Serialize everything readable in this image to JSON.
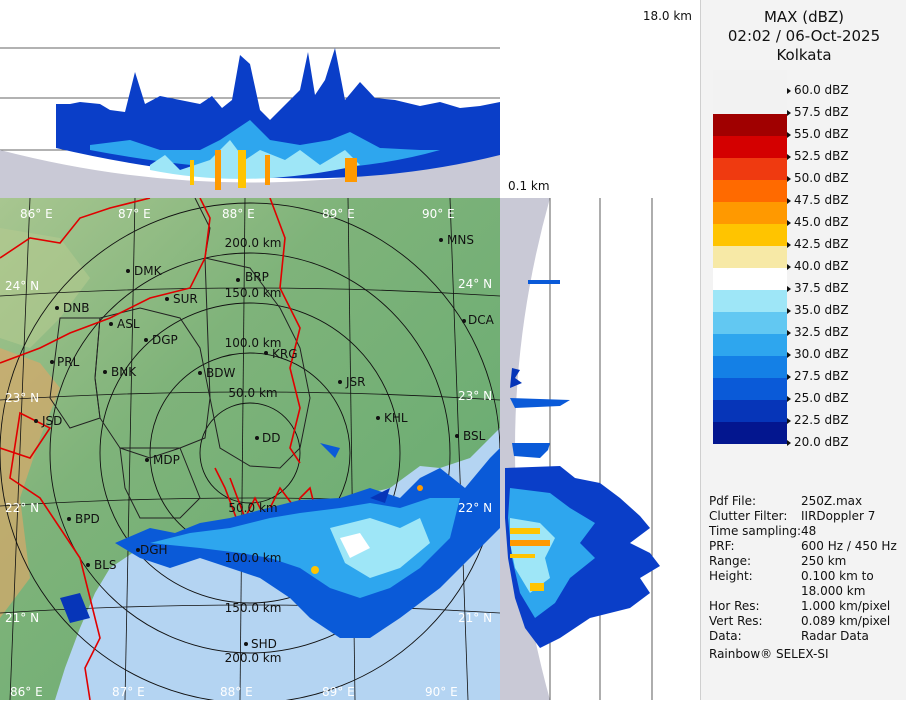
{
  "legend": {
    "product": "MAX (dBZ)",
    "datetime": "02:02 / 06-Oct-2025",
    "station": "Kolkata",
    "levels": [
      {
        "label": "60.0 dBZ",
        "color": "#f2f2f2"
      },
      {
        "label": "57.5 dBZ",
        "color": "#f2f2f2"
      },
      {
        "label": "55.0 dBZ",
        "color": "#a00000"
      },
      {
        "label": "52.5 dBZ",
        "color": "#d40000"
      },
      {
        "label": "50.0 dBZ",
        "color": "#ef3a10"
      },
      {
        "label": "47.5 dBZ",
        "color": "#ff6a00"
      },
      {
        "label": "45.0 dBZ",
        "color": "#ff9900"
      },
      {
        "label": "42.5 dBZ",
        "color": "#ffc400"
      },
      {
        "label": "40.0 dBZ",
        "color": "#f7e9a6"
      },
      {
        "label": "37.5 dBZ",
        "color": "#ffffff"
      },
      {
        "label": "35.0 dBZ",
        "color": "#9ee6f7"
      },
      {
        "label": "32.5 dBZ",
        "color": "#62c8f2"
      },
      {
        "label": "30.0 dBZ",
        "color": "#2ea6ee"
      },
      {
        "label": "27.5 dBZ",
        "color": "#1480e6"
      },
      {
        "label": "25.0 dBZ",
        "color": "#0a5ad8"
      },
      {
        "label": "22.5 dBZ",
        "color": "#0635b8"
      },
      {
        "label": "20.0 dBZ",
        "color": "#03168f"
      }
    ]
  },
  "info": [
    {
      "key": "Pdf File:",
      "value": "250Z.max"
    },
    {
      "key": "Clutter Filter:",
      "value": "IIRDoppler 7"
    },
    {
      "key": "Time sampling:",
      "value": "48"
    },
    {
      "key": "PRF:",
      "value": "600 Hz / 450 Hz"
    },
    {
      "key": "Range:",
      "value": "250 km"
    },
    {
      "key": "Height:",
      "value": "0.100 km to"
    },
    {
      "key": "",
      "value": "18.000 km"
    },
    {
      "key": "Hor Res:",
      "value": "1.000 km/pixel"
    },
    {
      "key": "Vert Res:",
      "value": "0.089 km/pixel"
    },
    {
      "key": "Data:",
      "value": "Radar Data"
    }
  ],
  "credit": "Rainbow® SELEX-SI",
  "section": {
    "top_height": "18.0 km",
    "bottom_height": "0.1 km"
  },
  "map": {
    "lon_labels": [
      "86° E",
      "87° E",
      "88° E",
      "89° E",
      "90° E"
    ],
    "lat_labels": [
      "24° N",
      "23° N",
      "22° N",
      "21° N"
    ],
    "ring_labels": [
      "200.0 km",
      "150.0 km",
      "100.0 km",
      "50.0 km",
      "50.0 km",
      "100.0 km",
      "150.0 km",
      "200.0 km"
    ],
    "stations": [
      "MNS",
      "DMK",
      "BRP",
      "DNB",
      "SUR",
      "ASL",
      "DGP",
      "DCA",
      "PRL",
      "KRG",
      "BNK",
      "BDW",
      "JSR",
      "JSD",
      "KHL",
      "DD",
      "BSL",
      "MDP",
      "BPD",
      "DGH",
      "BLS",
      "SHD"
    ]
  }
}
